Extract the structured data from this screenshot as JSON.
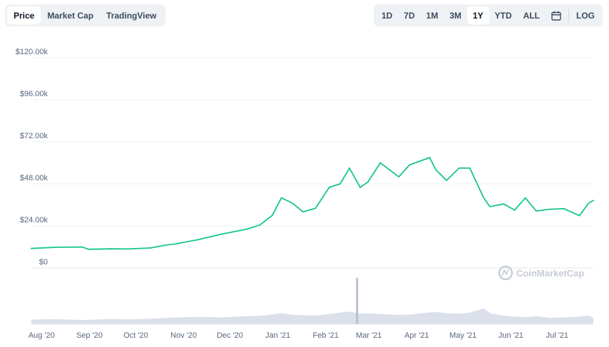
{
  "tabs": [
    {
      "label": "Price",
      "active": true
    },
    {
      "label": "Market Cap",
      "active": false
    },
    {
      "label": "TradingView",
      "active": false
    }
  ],
  "ranges": [
    {
      "label": "1D",
      "active": false
    },
    {
      "label": "7D",
      "active": false
    },
    {
      "label": "1M",
      "active": false
    },
    {
      "label": "3M",
      "active": false
    },
    {
      "label": "1Y",
      "active": true
    },
    {
      "label": "YTD",
      "active": false
    },
    {
      "label": "ALL",
      "active": false
    }
  ],
  "calendar_icon": "calendar-icon",
  "log_label": "LOG",
  "watermark": "CoinMarketCap",
  "colors": {
    "line": "#16c784",
    "volume": "#cfd6e4",
    "grid": "#eff2f5",
    "text": "#58667e"
  },
  "chart_data": {
    "type": "line",
    "ylim": [
      0,
      120000
    ],
    "yticks": [
      0,
      24000,
      48000,
      72000,
      96000,
      120000
    ],
    "ytick_labels": [
      "$0",
      "$24.00k",
      "$48.00k",
      "$72.00k",
      "$96.00k",
      "$120.00k"
    ],
    "xtick_labels": [
      "Aug '20",
      "Sep '20",
      "Oct '20",
      "Nov '20",
      "Dec '20",
      "Jan '21",
      "Feb '21",
      "Mar '21",
      "Apr '21",
      "May '21",
      "Jun '21",
      "Jul '21"
    ],
    "grid": true,
    "x": [
      "2020-07-30",
      "2020-08-15",
      "2020-09-01",
      "2020-09-05",
      "2020-09-20",
      "2020-10-01",
      "2020-10-15",
      "2020-10-25",
      "2020-11-01",
      "2020-11-15",
      "2020-12-01",
      "2020-12-16",
      "2020-12-25",
      "2021-01-02",
      "2021-01-08",
      "2021-01-15",
      "2021-01-22",
      "2021-01-30",
      "2021-02-08",
      "2021-02-15",
      "2021-02-21",
      "2021-02-28",
      "2021-03-05",
      "2021-03-13",
      "2021-03-25",
      "2021-04-01",
      "2021-04-14",
      "2021-04-18",
      "2021-04-25",
      "2021-05-03",
      "2021-05-10",
      "2021-05-19",
      "2021-05-23",
      "2021-06-01",
      "2021-06-08",
      "2021-06-15",
      "2021-06-22",
      "2021-07-01",
      "2021-07-10",
      "2021-07-20",
      "2021-07-26",
      "2021-07-29"
    ],
    "series": [
      {
        "values": [
          11100,
          11800,
          11900,
          10600,
          10900,
          10800,
          11400,
          13000,
          13800,
          16100,
          19400,
          22000,
          24500,
          30000,
          40000,
          37000,
          32000,
          34000,
          46000,
          48000,
          57000,
          46000,
          49000,
          60000,
          52000,
          58800,
          63000,
          56000,
          50000,
          57000,
          57000,
          40000,
          35000,
          36500,
          33000,
          40000,
          32500,
          33500,
          33800,
          29800,
          37000,
          38500
        ]
      }
    ],
    "volume": [
      2.2,
      2.4,
      2.0,
      2.1,
      2.5,
      2.3,
      2.6,
      2.9,
      3.2,
      3.5,
      3.2,
      3.8,
      4.0,
      4.6,
      5.2,
      4.5,
      4.3,
      4.1,
      4.8,
      5.5,
      6.0,
      5.0,
      5.2,
      4.8,
      4.4,
      4.6,
      5.6,
      5.8,
      5.2,
      5.0,
      5.5,
      7.5,
      5.2,
      4.0,
      3.6,
      3.4,
      3.8,
      3.0,
      3.2,
      3.6,
      4.2,
      3.0
    ],
    "volume_spike": {
      "x": "2021-02-26",
      "value": 22
    }
  }
}
